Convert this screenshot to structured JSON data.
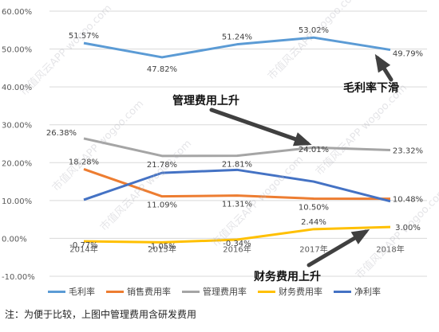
{
  "chart_data": {
    "type": "line",
    "categories": [
      "2014年",
      "2015年",
      "2016年",
      "2017年",
      "2018年"
    ],
    "ylim": [
      -10,
      60
    ],
    "yticks": [
      "-10.00%",
      "0.00%",
      "10.00%",
      "20.00%",
      "30.00%",
      "40.00%",
      "50.00%",
      "60.00%"
    ],
    "grid": true,
    "legend_position": "bottom",
    "series": [
      {
        "name": "毛利率",
        "color": "#5b9bd5",
        "values": [
          51.57,
          47.82,
          51.24,
          53.02,
          49.79
        ],
        "labels": [
          "51.57%",
          "47.82%",
          "51.24%",
          "53.02%",
          "49.79%"
        ]
      },
      {
        "name": "销售费用率",
        "color": "#ed7d31",
        "values": [
          18.28,
          11.09,
          11.31,
          10.5,
          10.48
        ],
        "labels": [
          "18.28%",
          "11.09%",
          "11.31%",
          "10.50%",
          "10.48%"
        ]
      },
      {
        "name": "管理费用率",
        "color": "#a5a5a5",
        "values": [
          26.38,
          21.78,
          21.81,
          24.01,
          23.32
        ],
        "labels": [
          "26.38%",
          "21.78%",
          "21.81%",
          "24.01%",
          "23.32%"
        ]
      },
      {
        "name": "财务费用率",
        "color": "#ffc000",
        "values": [
          -0.77,
          -1.05,
          -0.34,
          2.44,
          3.0
        ],
        "labels": [
          "-0.77%",
          "-1.05%",
          "-0.34%",
          "2.44%",
          "3.00%"
        ]
      },
      {
        "name": "净利率",
        "color": "#4472c4",
        "values": [
          10.2,
          17.3,
          18.1,
          15.0,
          9.8
        ],
        "labels": []
      }
    ],
    "annotations": [
      {
        "text": "毛利率下滑"
      },
      {
        "text": "管理费用上升"
      },
      {
        "text": "财务费用上升"
      }
    ]
  },
  "note": "注：为便于比较，上图中管理费用含研发费用",
  "watermark": "市值风云APP wogoo.com"
}
